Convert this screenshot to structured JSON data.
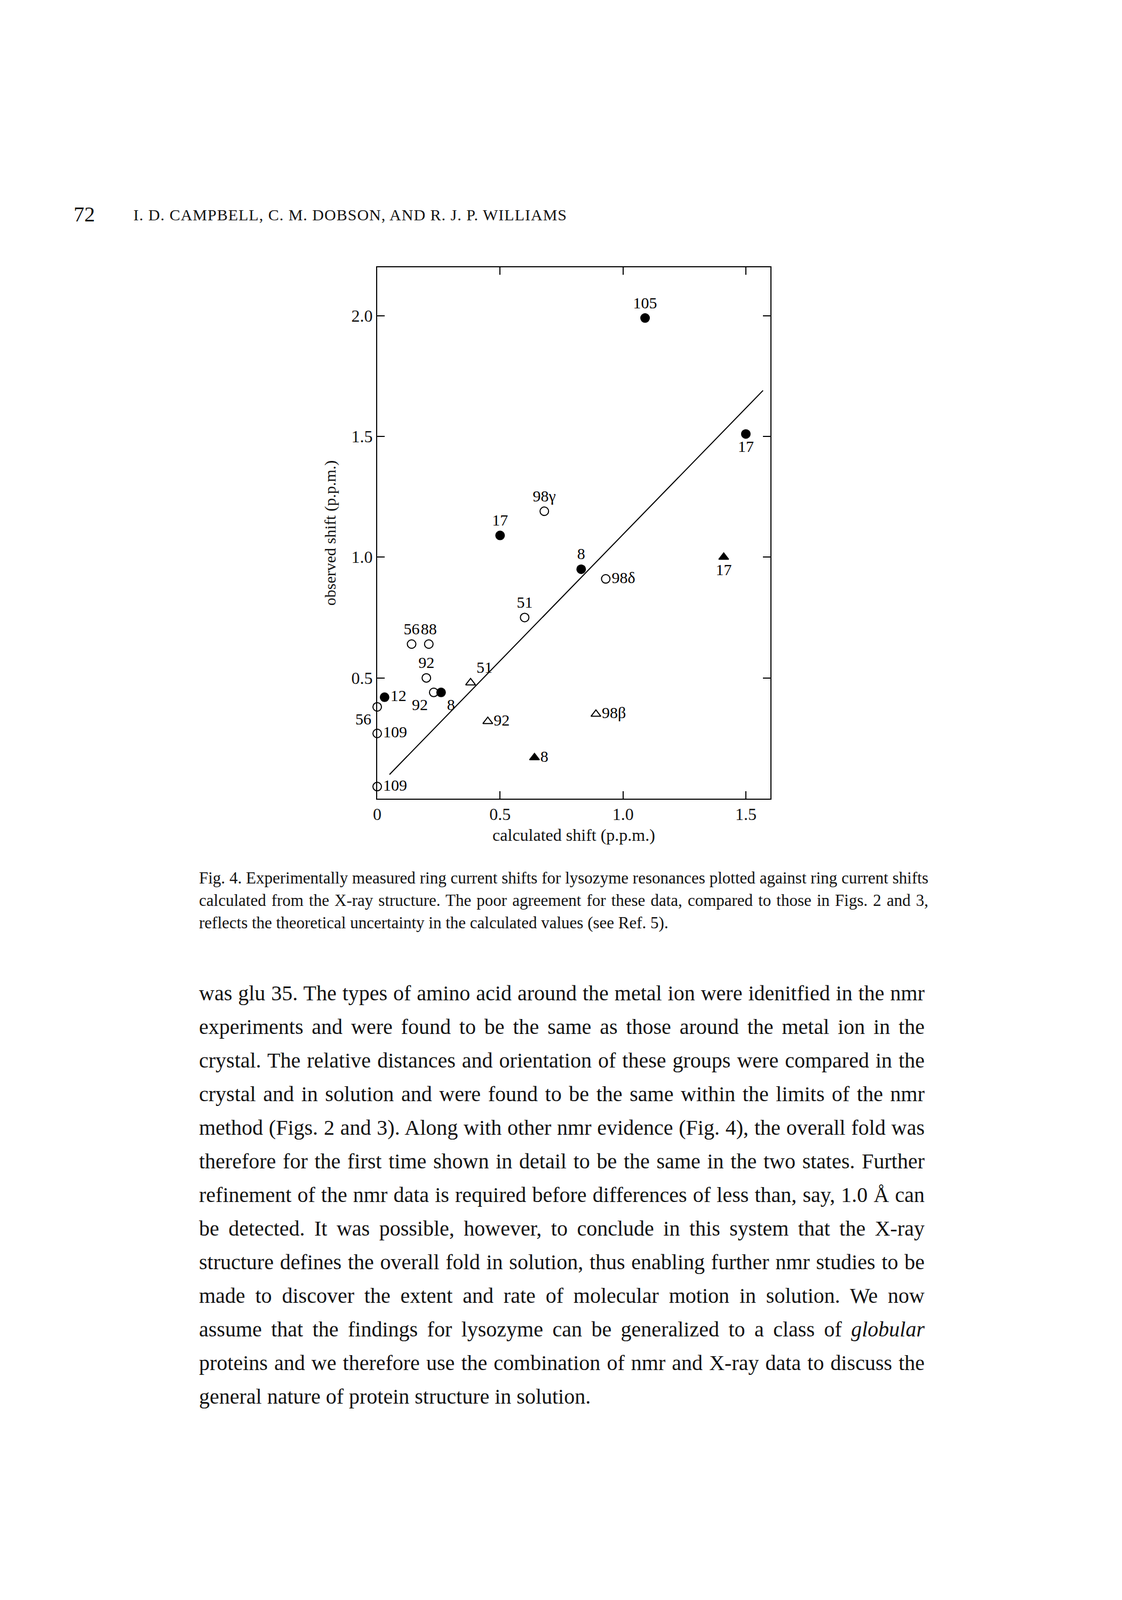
{
  "header": {
    "page": "72",
    "authors": "I. D. CAMPBELL, C. M. DOBSON, AND R. J. P. WILLIAMS"
  },
  "chart_data": {
    "type": "scatter",
    "x_label": "calculated shift (p.p.m.)",
    "y_label": "observed shift (p.p.m.)",
    "xlim": [
      0,
      1.6
    ],
    "ylim": [
      0,
      2.2
    ],
    "xticks": [
      0,
      0.5,
      {
        "value": 1,
        "label": "1.0"
      },
      1.5
    ],
    "yticks": [
      0.5,
      {
        "value": 1,
        "label": "1.0"
      },
      1.5,
      {
        "value": 2,
        "label": "2.0"
      }
    ],
    "grid": false,
    "series": [
      {
        "type": "scatter",
        "marker": "filled circle",
        "color": "#000000",
        "x": [
          1.09,
          1.5,
          0.5,
          0.83,
          0.03,
          0.26
        ],
        "values": [
          1.99,
          1.51,
          1.09,
          0.95,
          0.42,
          0.44
        ],
        "labels": [
          "105",
          "17",
          "17",
          "8",
          "12",
          "8"
        ]
      },
      {
        "type": "scatter",
        "marker": "open circle",
        "color": "#000000",
        "x": [
          0.68,
          0.93,
          0.6,
          0.14,
          0.21,
          0.2,
          0,
          0.23,
          0,
          0
        ],
        "values": [
          1.19,
          0.91,
          0.75,
          0.64,
          0.64,
          0.5,
          0.38,
          0.44,
          0.27,
          0.05
        ],
        "labels": [
          "98γ",
          "98δ",
          "51",
          "56",
          "88",
          "92",
          "56",
          "92",
          "109",
          "109"
        ]
      },
      {
        "type": "scatter",
        "marker": "open triangle",
        "color": "#000000",
        "x": [
          0.38,
          0.45,
          0.89
        ],
        "values": [
          0.48,
          0.32,
          0.35
        ],
        "labels": [
          "51",
          "92",
          "98β"
        ]
      },
      {
        "type": "scatter",
        "marker": "filled triangle",
        "color": "#000000",
        "x": [
          1.41,
          0.64
        ],
        "values": [
          1.0,
          0.17
        ],
        "labels": [
          "17",
          "8"
        ]
      },
      {
        "type": "line",
        "line_style": "solid",
        "color": "#000000",
        "x": [
          0.05,
          1.57
        ],
        "values": [
          0.1,
          1.69
        ]
      }
    ]
  },
  "caption": "Fig. 4. Experimentally measured ring current shifts for lysozyme resonances plotted against ring current shifts calculated from the X-ray structure. The poor agreement for these data, compared to those in Figs. 2 and 3, reflects the theoretical uncertainty in the calculated values (see Ref. 5).",
  "body": {
    "before": "was glu 35. The types of amino acid around the metal ion were idenitfied in the nmr experiments and were found to be the same as those around the metal ion in the crystal. The relative distances and orientation of these groups were compared in the crystal and in solution and were found to be the same within the limits of the nmr method (Figs. 2 and 3). Along with other nmr evidence (Fig. 4), the overall fold was therefore for the first time shown in detail to be the same in the two states. Further refinement of the nmr data is required before differences of less than, say, 1.0 Å can be detected. It was possible, however, to conclude in this system that the X-ray structure defines the overall fold in solution, thus enabling further nmr studies to be made to discover the extent and rate of molecular motion in solution. We now assume that the findings for lysozyme can be generalized to a class of",
    "italic": "globular",
    "after": "proteins and we therefore use the combination of nmr and X-ray data to discuss the general nature of protein structure in solution."
  }
}
